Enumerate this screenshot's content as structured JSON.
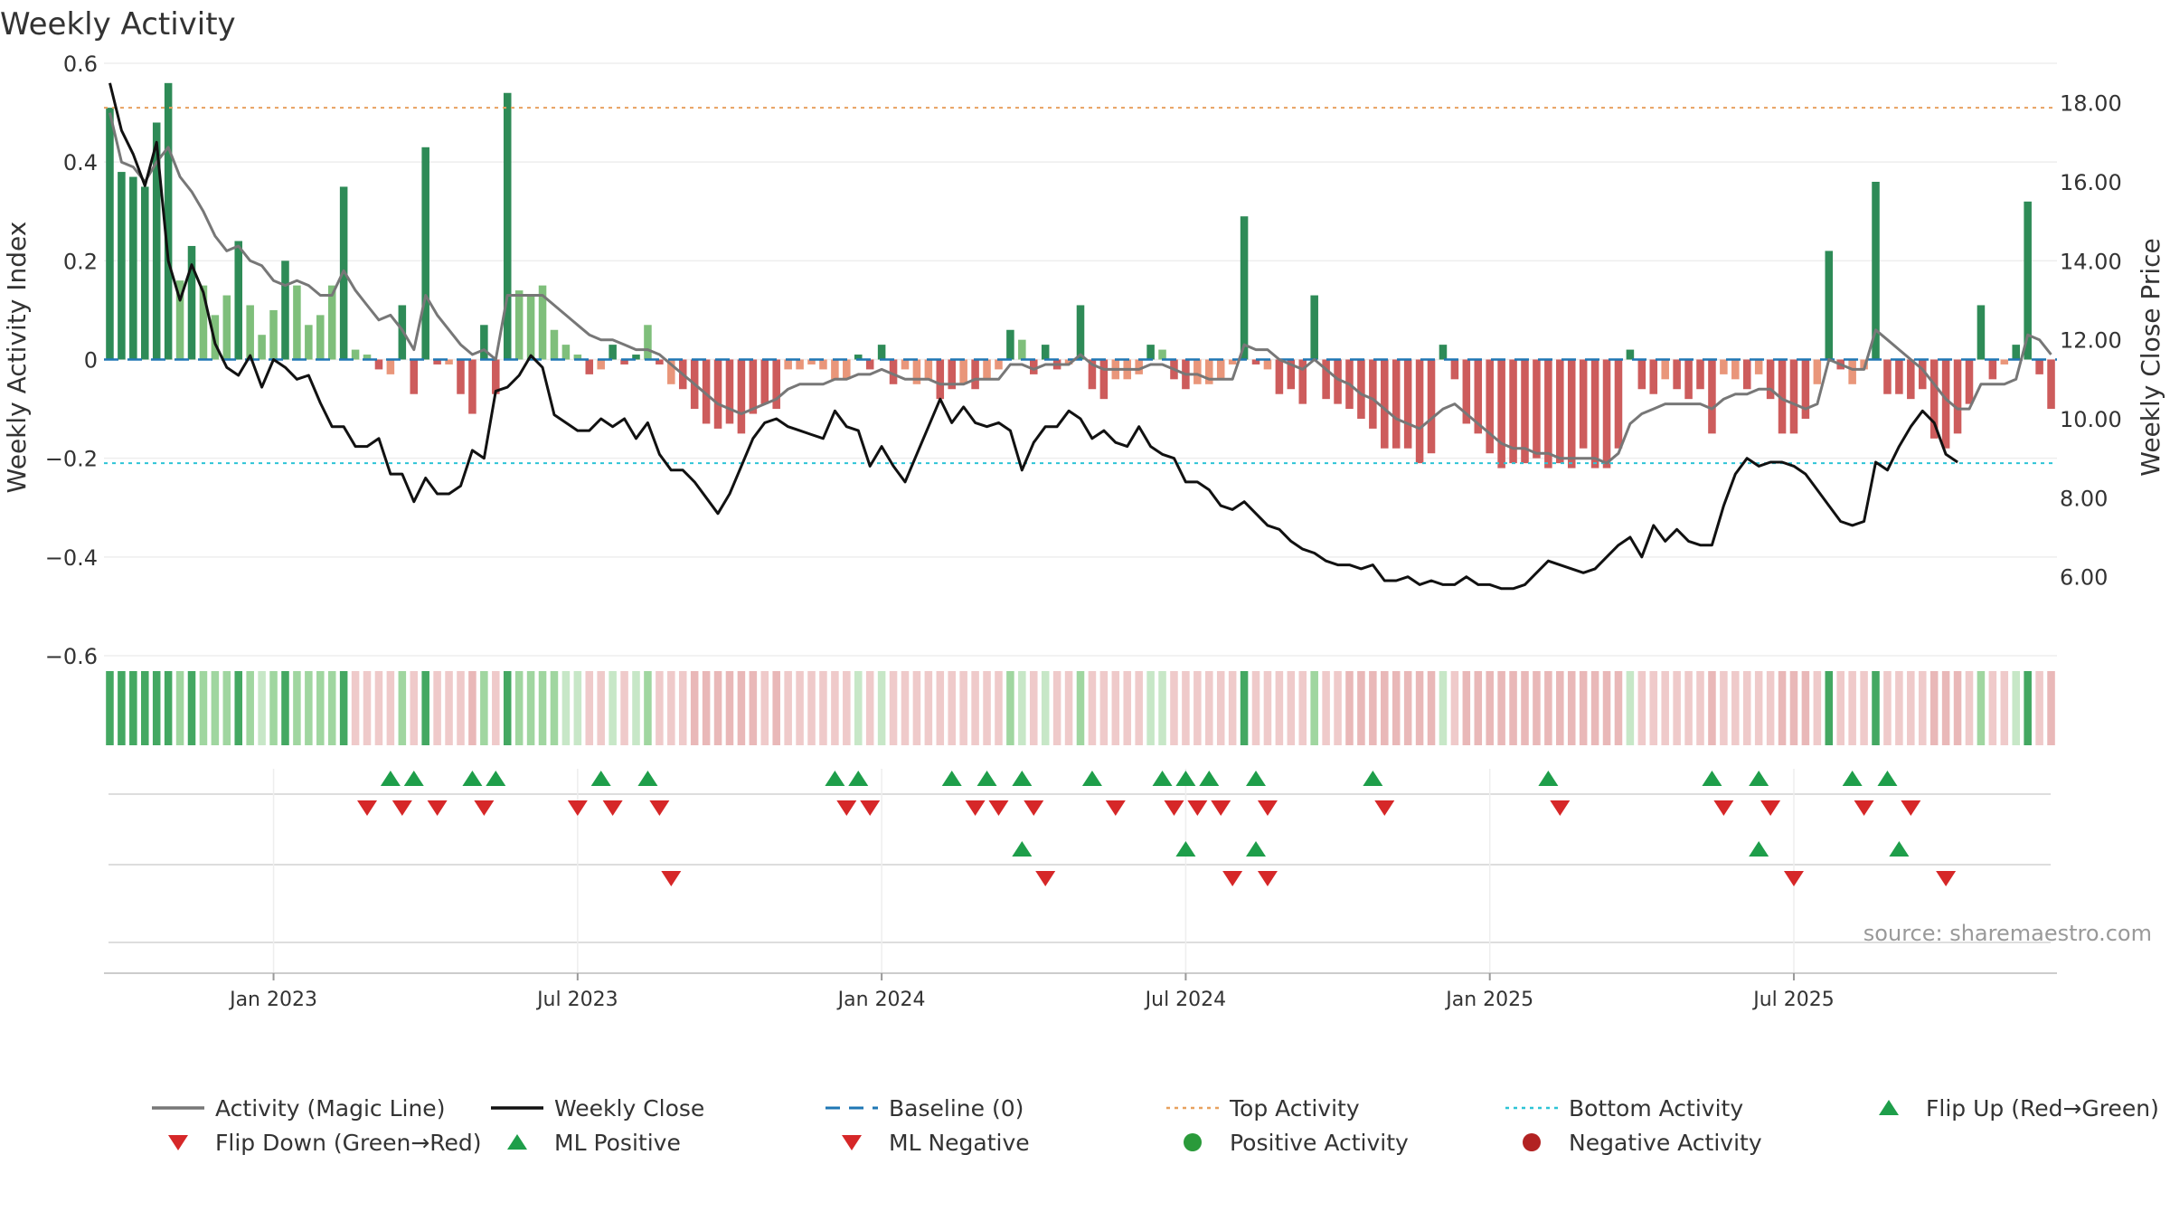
{
  "chart_data": {
    "type": "bar",
    "title": "Weekly Activity",
    "ylabel": "Weekly Activity Index",
    "y2label": "Weekly Close Price",
    "ylim": [
      -0.6,
      0.6
    ],
    "y2lim": [
      4.0,
      19.0
    ],
    "yticks": [
      0.6,
      0.4,
      0.2,
      0,
      -0.2,
      -0.4,
      -0.6
    ],
    "ytick_labels": [
      "0.6",
      "0.4",
      "0.2",
      "0",
      "−0.2",
      "−0.4",
      "−0.6"
    ],
    "y2ticks": [
      18,
      16,
      14,
      12,
      10,
      8,
      6
    ],
    "y2tick_labels": [
      "18.00",
      "16.00",
      "14.00",
      "12.00",
      "10.00",
      "8.00",
      "6.00"
    ],
    "xticks": [
      {
        "label": "Jan 2023",
        "week": 14
      },
      {
        "label": "Jul 2023",
        "week": 40
      },
      {
        "label": "Jan 2024",
        "week": 66
      },
      {
        "label": "Jul 2024",
        "week": 92
      },
      {
        "label": "Jan 2025",
        "week": 118
      },
      {
        "label": "Jul 2025",
        "week": 144
      }
    ],
    "top_activity": 0.51,
    "bottom_activity": -0.21,
    "baseline": 0,
    "source": "source: sharemaestro.com",
    "activity": [
      0.51,
      0.38,
      0.37,
      0.35,
      0.48,
      0.56,
      0.16,
      0.23,
      0.15,
      0.09,
      0.13,
      0.24,
      0.11,
      0.05,
      0.1,
      0.2,
      0.15,
      0.07,
      0.09,
      0.15,
      0.35,
      0.02,
      0.01,
      -0.02,
      -0.03,
      0.11,
      -0.07,
      0.43,
      -0.01,
      -0.01,
      -0.07,
      -0.11,
      0.07,
      -0.07,
      0.54,
      0.14,
      0.13,
      0.15,
      0.06,
      0.03,
      0.01,
      -0.03,
      -0.02,
      0.03,
      -0.01,
      0.01,
      0.07,
      -0.01,
      -0.05,
      -0.06,
      -0.1,
      -0.13,
      -0.14,
      -0.13,
      -0.15,
      -0.11,
      -0.09,
      -0.1,
      -0.02,
      -0.02,
      -0.01,
      -0.02,
      -0.04,
      -0.04,
      0.01,
      -0.02,
      0.03,
      -0.05,
      -0.02,
      -0.05,
      -0.04,
      -0.08,
      -0.06,
      -0.05,
      -0.06,
      -0.04,
      -0.02,
      0.06,
      0.04,
      -0.03,
      0.03,
      -0.02,
      -0.01,
      0.11,
      -0.06,
      -0.08,
      -0.04,
      -0.04,
      -0.03,
      0.03,
      0.02,
      -0.04,
      -0.06,
      -0.05,
      -0.05,
      -0.04,
      -0.01,
      0.29,
      -0.01,
      -0.02,
      -0.07,
      -0.06,
      -0.09,
      0.13,
      -0.08,
      -0.09,
      -0.1,
      -0.12,
      -0.14,
      -0.18,
      -0.18,
      -0.18,
      -0.21,
      -0.19,
      0.03,
      -0.04,
      -0.13,
      -0.15,
      -0.19,
      -0.22,
      -0.21,
      -0.21,
      -0.2,
      -0.22,
      -0.21,
      -0.22,
      -0.18,
      -0.22,
      -0.22,
      -0.18,
      0.02,
      -0.06,
      -0.07,
      -0.04,
      -0.06,
      -0.08,
      -0.06,
      -0.15,
      -0.03,
      -0.04,
      -0.06,
      -0.03,
      -0.08,
      -0.15,
      -0.15,
      -0.12,
      -0.05,
      0.22,
      -0.02,
      -0.05,
      -0.02,
      0.36,
      -0.07,
      -0.07,
      -0.08,
      -0.06,
      -0.16,
      -0.18,
      -0.15,
      -0.09,
      0.11,
      -0.04,
      -0.01,
      0.03,
      0.32,
      -0.03,
      -0.1
    ],
    "magic_line": [
      0.5,
      0.4,
      0.39,
      0.36,
      0.4,
      0.43,
      0.37,
      0.34,
      0.3,
      0.25,
      0.22,
      0.23,
      0.2,
      0.19,
      0.16,
      0.15,
      0.16,
      0.15,
      0.13,
      0.13,
      0.18,
      0.14,
      0.11,
      0.08,
      0.09,
      0.06,
      0.02,
      0.13,
      0.09,
      0.06,
      0.03,
      0.01,
      0.02,
      0,
      0.13,
      0.13,
      0.13,
      0.13,
      0.11,
      0.09,
      0.07,
      0.05,
      0.04,
      0.04,
      0.03,
      0.02,
      0.02,
      0.01,
      -0.01,
      -0.03,
      -0.05,
      -0.07,
      -0.09,
      -0.1,
      -0.11,
      -0.1,
      -0.09,
      -0.08,
      -0.06,
      -0.05,
      -0.05,
      -0.05,
      -0.04,
      -0.04,
      -0.03,
      -0.03,
      -0.02,
      -0.03,
      -0.04,
      -0.04,
      -0.04,
      -0.05,
      -0.05,
      -0.05,
      -0.04,
      -0.04,
      -0.04,
      -0.01,
      -0.01,
      -0.02,
      -0.01,
      -0.01,
      -0.01,
      0.01,
      -0.01,
      -0.02,
      -0.02,
      -0.02,
      -0.02,
      -0.01,
      -0.01,
      -0.02,
      -0.03,
      -0.03,
      -0.04,
      -0.04,
      -0.04,
      0.03,
      0.02,
      0.02,
      0.0,
      -0.01,
      -0.02,
      0.0,
      -0.02,
      -0.04,
      -0.05,
      -0.07,
      -0.08,
      -0.1,
      -0.12,
      -0.13,
      -0.14,
      -0.12,
      -0.1,
      -0.09,
      -0.11,
      -0.13,
      -0.15,
      -0.17,
      -0.18,
      -0.18,
      -0.19,
      -0.19,
      -0.2,
      -0.2,
      -0.2,
      -0.2,
      -0.21,
      -0.19,
      -0.13,
      -0.11,
      -0.1,
      -0.09,
      -0.09,
      -0.09,
      -0.09,
      -0.1,
      -0.08,
      -0.07,
      -0.07,
      -0.06,
      -0.06,
      -0.08,
      -0.09,
      -0.1,
      -0.09,
      0.0,
      -0.01,
      -0.02,
      -0.02,
      0.06,
      0.04,
      0.02,
      0.0,
      -0.02,
      -0.05,
      -0.08,
      -0.1,
      -0.1,
      -0.05,
      -0.05,
      -0.05,
      -0.04,
      0.05,
      0.04,
      0.01
    ],
    "weekly_close": [
      18.5,
      17.3,
      16.7,
      15.9,
      17.0,
      14.0,
      13.0,
      13.9,
      13.2,
      11.9,
      11.3,
      11.1,
      11.6,
      10.8,
      11.5,
      11.3,
      11.0,
      11.1,
      10.4,
      9.8,
      9.8,
      9.3,
      9.3,
      9.5,
      8.6,
      8.6,
      7.9,
      8.5,
      8.1,
      8.1,
      8.3,
      9.2,
      9.0,
      10.7,
      10.8,
      11.1,
      11.6,
      11.3,
      10.1,
      9.9,
      9.7,
      9.7,
      10.0,
      9.8,
      10.0,
      9.5,
      9.9,
      9.1,
      8.7,
      8.7,
      8.4,
      8.0,
      7.6,
      8.1,
      8.8,
      9.5,
      9.9,
      10.0,
      9.8,
      9.7,
      9.6,
      9.5,
      10.2,
      9.8,
      9.7,
      8.8,
      9.3,
      8.8,
      8.4,
      9.1,
      9.8,
      10.5,
      9.9,
      10.3,
      9.9,
      9.8,
      9.9,
      9.7,
      8.7,
      9.4,
      9.8,
      9.8,
      10.2,
      10.0,
      9.5,
      9.7,
      9.4,
      9.3,
      9.8,
      9.3,
      9.1,
      9.0,
      8.4,
      8.4,
      8.2,
      7.8,
      7.7,
      7.9,
      7.6,
      7.3,
      7.2,
      6.9,
      6.7,
      6.6,
      6.4,
      6.3,
      6.3,
      6.2,
      6.3,
      5.9,
      5.9,
      6.0,
      5.8,
      5.9,
      5.8,
      5.8,
      6.0,
      5.8,
      5.8,
      5.7,
      5.7,
      5.8,
      6.1,
      6.4,
      6.3,
      6.2,
      6.1,
      6.2,
      6.5,
      6.8,
      7.0,
      6.5,
      7.3,
      6.9,
      7.2,
      6.9,
      6.8,
      6.8,
      7.8,
      8.6,
      9.0,
      8.8,
      8.9,
      8.9,
      8.8,
      8.6,
      8.2,
      7.8,
      7.4,
      7.3,
      7.4,
      8.9,
      8.7,
      9.3,
      9.8,
      10.2,
      9.9,
      9.1,
      8.9
    ],
    "strip_states": [
      "g",
      "g",
      "g",
      "g",
      "g",
      "g",
      "g",
      "g",
      "g",
      "g",
      "g",
      "g",
      "g",
      "g",
      "g",
      "g",
      "g",
      "g",
      "g",
      "g",
      "g",
      "r",
      "r",
      "r",
      "r",
      "g",
      "r",
      "g",
      "r",
      "r",
      "r",
      "r",
      "g",
      "r",
      "g",
      "g",
      "g",
      "g",
      "g",
      "g",
      "g",
      "r",
      "r",
      "g",
      "r",
      "g",
      "g",
      "r",
      "r",
      "r",
      "r",
      "r",
      "r",
      "r",
      "r",
      "r",
      "r",
      "r",
      "r",
      "r",
      "r",
      "r",
      "r",
      "r",
      "g",
      "r",
      "g",
      "r",
      "r",
      "r",
      "r",
      "r",
      "r",
      "r",
      "r",
      "r",
      "r",
      "g",
      "g",
      "r",
      "g",
      "r",
      "r",
      "g",
      "r",
      "r",
      "r",
      "r",
      "r",
      "g",
      "g",
      "r",
      "r",
      "r",
      "r",
      "r",
      "r",
      "g",
      "r",
      "r",
      "r",
      "r",
      "r",
      "g",
      "r",
      "r",
      "r",
      "r",
      "r",
      "r",
      "r",
      "r",
      "r",
      "r",
      "g",
      "r",
      "r",
      "r",
      "r",
      "r",
      "r",
      "r",
      "r",
      "r",
      "r",
      "r",
      "r",
      "r",
      "r",
      "r",
      "g",
      "r",
      "r",
      "r",
      "r",
      "r",
      "r",
      "r",
      "r",
      "r",
      "r",
      "r",
      "r",
      "r",
      "r",
      "r",
      "r",
      "g",
      "r",
      "r",
      "r",
      "g",
      "r",
      "r",
      "r",
      "r",
      "r",
      "r",
      "r",
      "r",
      "g",
      "r",
      "r",
      "g",
      "g",
      "r",
      "r"
    ],
    "flip_up": [
      24,
      26,
      31,
      33,
      42,
      46,
      62,
      64,
      72,
      75,
      78,
      84,
      90,
      92,
      94,
      98,
      108,
      123,
      137,
      141,
      149,
      152
    ],
    "flip_down": [
      22,
      25,
      28,
      32,
      40,
      43,
      47,
      63,
      65,
      74,
      76,
      79,
      86,
      91,
      93,
      95,
      99,
      109,
      124,
      138,
      142,
      150,
      154
    ],
    "ml_positive": [
      78,
      92,
      98,
      141,
      153
    ],
    "ml_negative": [
      48,
      80,
      96,
      99,
      144,
      157
    ],
    "legend": [
      {
        "label": "Activity (Magic Line)",
        "kind": "line",
        "color": "#777777"
      },
      {
        "label": "Weekly Close",
        "kind": "line",
        "color": "#111111"
      },
      {
        "label": "Baseline (0)",
        "kind": "dash",
        "color": "#1f77b4"
      },
      {
        "label": "Top Activity",
        "kind": "dot-line",
        "color": "#e8a15f"
      },
      {
        "label": "Bottom Activity",
        "kind": "dot-line",
        "color": "#2ec4d6"
      },
      {
        "label": "Flip Up (Red→Green)",
        "kind": "tri-up",
        "color": "#1e9e4a"
      },
      {
        "label": "Flip Down (Green→Red)",
        "kind": "tri-down",
        "color": "#d62728"
      },
      {
        "label": "ML Positive",
        "kind": "tri-up",
        "color": "#1e9e4a"
      },
      {
        "label": "ML Negative",
        "kind": "tri-down",
        "color": "#d62728"
      },
      {
        "label": "Positive Activity",
        "kind": "circle",
        "color": "#2a9a3a"
      },
      {
        "label": "Negative Activity",
        "kind": "circle",
        "color": "#b22222"
      }
    ],
    "colors": {
      "pos_strong": "#2e8b57",
      "pos_light": "#7fbf7b",
      "neg_strong": "#cd5c5c",
      "neg_light": "#e9967a",
      "strip_pos": "#8fcf8f",
      "strip_neg": "#e8b4b4"
    }
  }
}
